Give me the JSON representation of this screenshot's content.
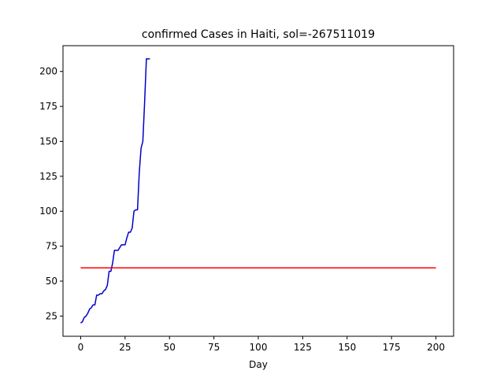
{
  "chart_data": {
    "type": "line",
    "title": "confirmed Cases in Haiti, sol=-267511019",
    "xlabel": "Day",
    "ylabel": "",
    "xlim": [
      -9.95,
      209.95
    ],
    "ylim": [
      10.55,
      218.45
    ],
    "xticks": [
      0,
      25,
      50,
      75,
      100,
      125,
      150,
      175,
      200
    ],
    "yticks": [
      25,
      50,
      75,
      100,
      125,
      150,
      175,
      200
    ],
    "grid": false,
    "legend": "none",
    "series": [
      {
        "color": "#0000cc",
        "x": [
          0,
          1,
          2,
          3,
          4,
          5,
          6,
          7,
          8,
          9,
          10,
          11,
          12,
          13,
          14,
          15,
          16,
          17,
          18,
          19,
          20,
          21,
          22,
          23,
          24,
          25,
          26,
          27,
          28,
          29,
          30,
          31,
          32,
          33,
          34,
          35,
          36,
          37,
          38,
          39
        ],
        "y": [
          20,
          21,
          24,
          25,
          27,
          30,
          31,
          33,
          33,
          40,
          40,
          41,
          41,
          43,
          44,
          47,
          57,
          57,
          63,
          72,
          72,
          72,
          74,
          76,
          76,
          76,
          81,
          85,
          85,
          88,
          100,
          101,
          101,
          128,
          145,
          150,
          178,
          209,
          209,
          209
        ]
      },
      {
        "color": "#ff0000",
        "x": [
          0,
          200
        ],
        "y": [
          59.5,
          59.5
        ]
      }
    ]
  }
}
